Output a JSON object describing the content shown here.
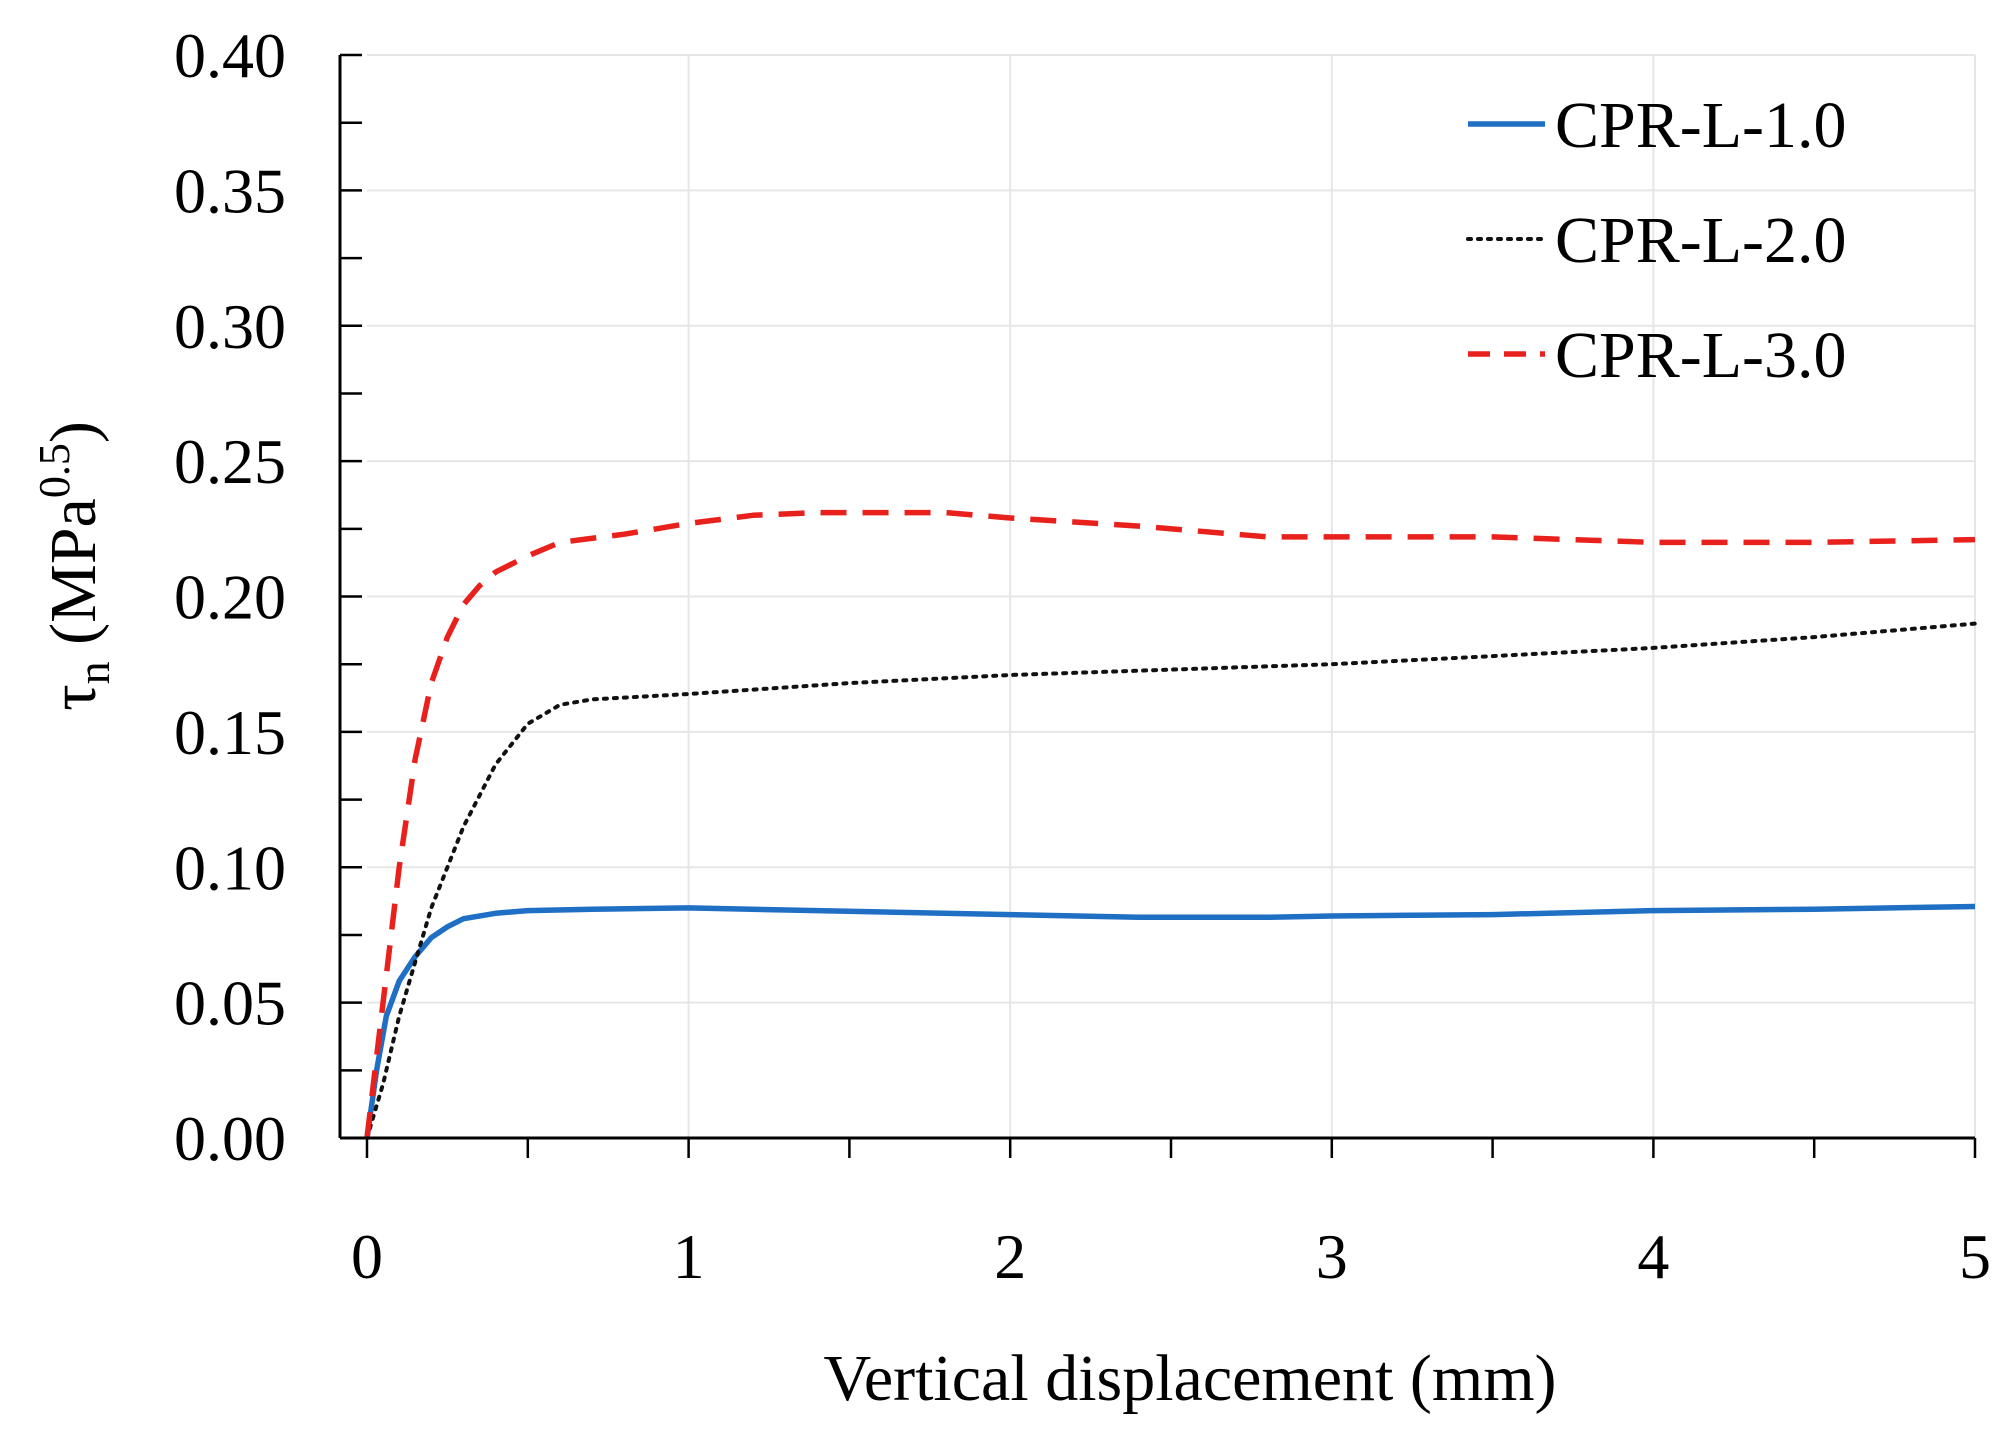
{
  "chart_data": {
    "type": "line",
    "title": "",
    "xlabel": "Vertical displacement (mm)",
    "ylabel": {
      "symbol": "τ",
      "subscript": "n",
      "unit_open": " (MPa",
      "unit_exponent": "0.5",
      "unit_close": ")"
    },
    "xlim": [
      0,
      5
    ],
    "ylim": [
      0,
      0.4
    ],
    "x_ticks": [
      0,
      1,
      2,
      3,
      4,
      5
    ],
    "x_tick_labels": [
      "0",
      "1",
      "2",
      "3",
      "4",
      "5"
    ],
    "x_minor_step": 0.5,
    "y_ticks": [
      0,
      0.05,
      0.1,
      0.15,
      0.2,
      0.25,
      0.3,
      0.35,
      0.4
    ],
    "y_tick_labels": [
      "0.00",
      "0.05",
      "0.10",
      "0.15",
      "0.20",
      "0.25",
      "0.30",
      "0.35",
      "0.40"
    ],
    "y_minor_step": 0.025,
    "grid": true,
    "legend_position": "top-right",
    "series": [
      {
        "name": "CPR-L-1.0",
        "color": "#1f6fc4",
        "dash": "solid",
        "x": [
          0,
          0.03,
          0.06,
          0.1,
          0.15,
          0.2,
          0.25,
          0.3,
          0.4,
          0.5,
          0.7,
          1.0,
          1.4,
          2.0,
          2.4,
          2.8,
          3.0,
          3.5,
          4.0,
          4.5,
          5.0
        ],
        "y": [
          0,
          0.025,
          0.045,
          0.058,
          0.067,
          0.074,
          0.078,
          0.081,
          0.083,
          0.084,
          0.0845,
          0.085,
          0.084,
          0.0825,
          0.0815,
          0.0815,
          0.082,
          0.0825,
          0.084,
          0.0845,
          0.0855
        ]
      },
      {
        "name": "CPR-L-2.0",
        "color": "#111111",
        "dash": "dotted",
        "x": [
          0,
          0.05,
          0.1,
          0.15,
          0.2,
          0.3,
          0.4,
          0.5,
          0.6,
          0.7,
          1.0,
          1.5,
          2.0,
          2.5,
          3.0,
          3.5,
          4.0,
          4.5,
          5.0
        ],
        "y": [
          0,
          0.02,
          0.045,
          0.065,
          0.085,
          0.115,
          0.138,
          0.153,
          0.16,
          0.162,
          0.164,
          0.168,
          0.171,
          0.173,
          0.175,
          0.178,
          0.181,
          0.185,
          0.19
        ]
      },
      {
        "name": "CPR-L-3.0",
        "color": "#e8211d",
        "dash": "dashed",
        "x": [
          0,
          0.03,
          0.06,
          0.1,
          0.15,
          0.2,
          0.25,
          0.3,
          0.35,
          0.4,
          0.5,
          0.6,
          0.8,
          1.0,
          1.2,
          1.4,
          1.8,
          2.0,
          2.4,
          2.8,
          3.0,
          3.5,
          4.0,
          4.5,
          5.0
        ],
        "y": [
          0,
          0.03,
          0.06,
          0.1,
          0.14,
          0.168,
          0.185,
          0.197,
          0.204,
          0.209,
          0.215,
          0.22,
          0.223,
          0.227,
          0.23,
          0.231,
          0.231,
          0.229,
          0.226,
          0.222,
          0.222,
          0.222,
          0.22,
          0.22,
          0.221
        ]
      }
    ]
  }
}
